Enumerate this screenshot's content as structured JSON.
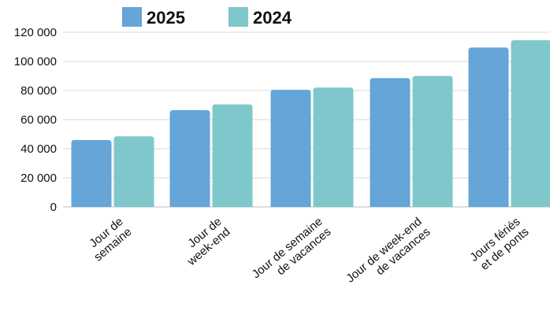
{
  "chart_data": {
    "type": "bar",
    "title": "",
    "xlabel": "",
    "ylabel": "",
    "categories": [
      [
        "Jour de",
        "semaine"
      ],
      [
        "Jour de",
        "week-end"
      ],
      [
        "Jour de semaine",
        "de vacances"
      ],
      [
        "Jour de week-end",
        "de vacances"
      ],
      [
        "Jours fériés",
        "et de ponts"
      ]
    ],
    "series": [
      {
        "name": "2025",
        "color": "#65a5d8",
        "values": [
          46000,
          66500,
          80500,
          88500,
          109500
        ]
      },
      {
        "name": "2024",
        "color": "#7ec8cc",
        "values": [
          48500,
          70500,
          82000,
          90000,
          114500
        ]
      }
    ],
    "ylim": [
      0,
      120000
    ],
    "yticks": [
      0,
      20000,
      40000,
      60000,
      80000,
      100000,
      120000
    ],
    "ytick_labels": [
      "0",
      "20 000",
      "40 000",
      "60 000",
      "80 000",
      "100 000",
      "120 000"
    ],
    "grid": true,
    "legend_position": "top-left"
  }
}
